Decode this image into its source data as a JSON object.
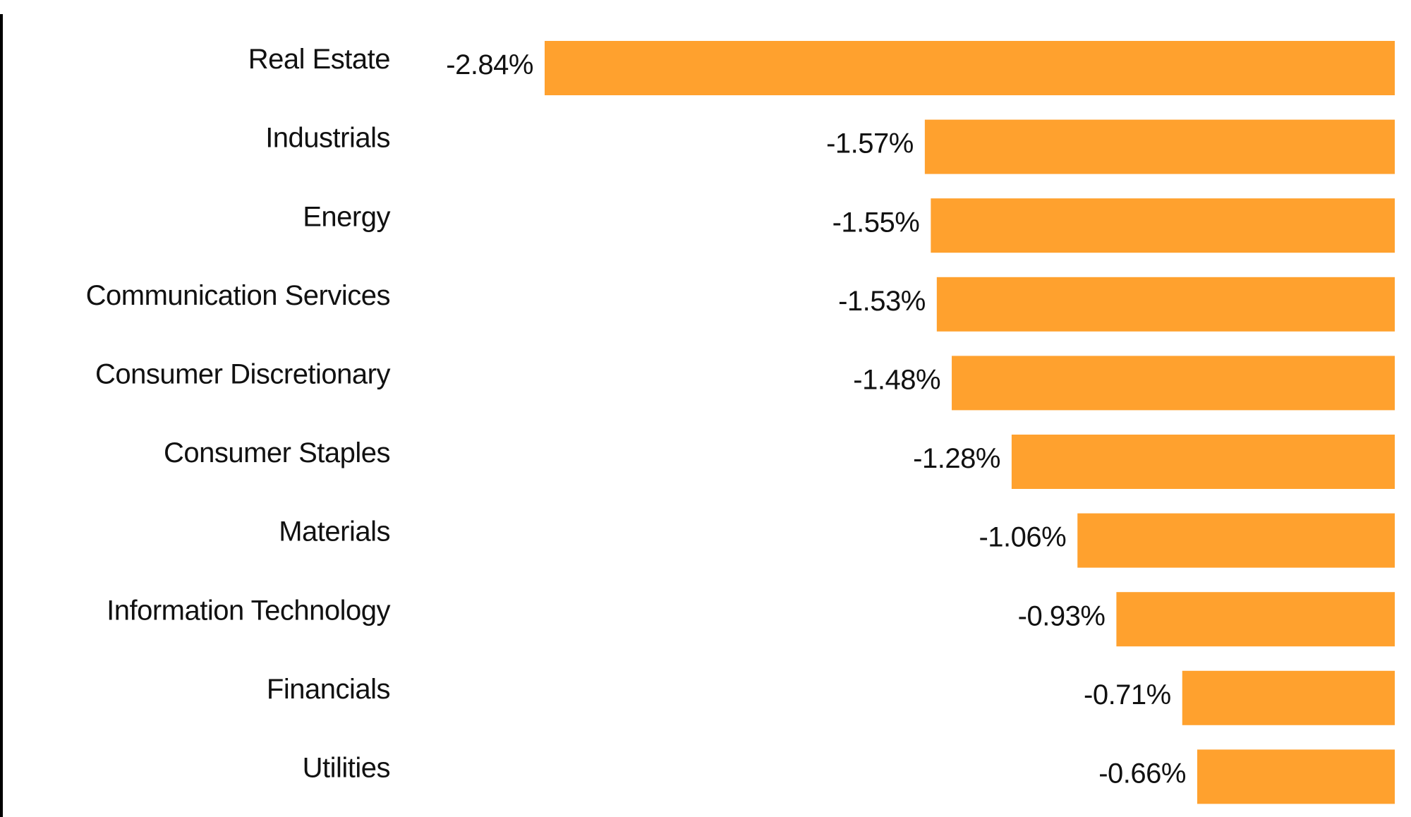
{
  "chart_data": {
    "type": "bar",
    "orientation": "horizontal",
    "categories": [
      "Real Estate",
      "Industrials",
      "Energy",
      "Communication Services",
      "Consumer Discretionary",
      "Consumer Staples",
      "Materials",
      "Information Technology",
      "Financials",
      "Utilities"
    ],
    "values": [
      -2.84,
      -1.57,
      -1.55,
      -1.53,
      -1.48,
      -1.28,
      -1.06,
      -0.93,
      -0.71,
      -0.66
    ],
    "value_labels": [
      "-2.84%",
      "-1.57%",
      "-1.55%",
      "-1.53%",
      "-1.48%",
      "-1.28%",
      "-1.06%",
      "-0.93%",
      "-0.71%",
      "-0.66%"
    ],
    "color": "#ffa12e"
  }
}
